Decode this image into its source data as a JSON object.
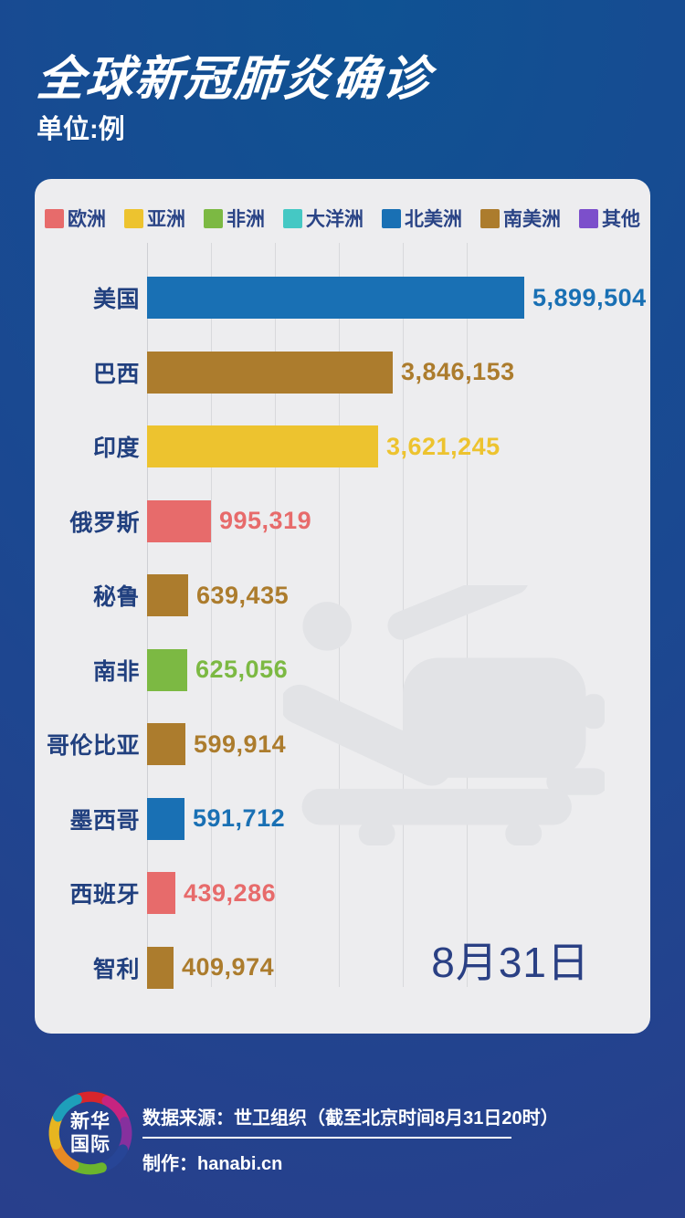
{
  "header": {
    "title": "全球新冠肺炎确诊",
    "unit_label": "单位:例"
  },
  "legend": [
    {
      "label": "欧洲",
      "color": "#E76B6B"
    },
    {
      "label": "亚洲",
      "color": "#EDC32F"
    },
    {
      "label": "非洲",
      "color": "#7CB943"
    },
    {
      "label": "大洋洲",
      "color": "#45C8C4"
    },
    {
      "label": "北美洲",
      "color": "#1970B4"
    },
    {
      "label": "南美洲",
      "color": "#AC7C2D"
    },
    {
      "label": "其他",
      "color": "#7C4FCB"
    }
  ],
  "chart_data": {
    "type": "bar",
    "orientation": "horizontal",
    "title": "全球新冠肺炎确诊",
    "unit": "例",
    "date_label": "8月31日",
    "grid": true,
    "gridline_interval": 1000000,
    "x_axis_gridline_values": [
      0,
      1000000,
      2000000,
      3000000,
      4000000,
      5000000
    ],
    "legend_position": "top",
    "bars": [
      {
        "country": "美国",
        "continent": "北美洲",
        "value": 5899504,
        "formatted": "5,899,504",
        "color": "#1970B4"
      },
      {
        "country": "巴西",
        "continent": "南美洲",
        "value": 3846153,
        "formatted": "3,846,153",
        "color": "#AC7C2D"
      },
      {
        "country": "印度",
        "continent": "亚洲",
        "value": 3621245,
        "formatted": "3,621,245",
        "color": "#EDC32F"
      },
      {
        "country": "俄罗斯",
        "continent": "欧洲",
        "value": 995319,
        "formatted": "995,319",
        "color": "#E76B6B"
      },
      {
        "country": "秘鲁",
        "continent": "南美洲",
        "value": 639435,
        "formatted": "639,435",
        "color": "#AC7C2D"
      },
      {
        "country": "南非",
        "continent": "非洲",
        "value": 625056,
        "formatted": "625,056",
        "color": "#7CB943"
      },
      {
        "country": "哥伦比亚",
        "continent": "南美洲",
        "value": 599914,
        "formatted": "599,914",
        "color": "#AC7C2D"
      },
      {
        "country": "墨西哥",
        "continent": "北美洲",
        "value": 591712,
        "formatted": "591,712",
        "color": "#1970B4"
      },
      {
        "country": "西班牙",
        "continent": "欧洲",
        "value": 439286,
        "formatted": "439,286",
        "color": "#E76B6B"
      },
      {
        "country": "智利",
        "continent": "南美洲",
        "value": 409974,
        "formatted": "409,974",
        "color": "#AC7C2D"
      }
    ]
  },
  "footer": {
    "source_line": "数据来源：世卫组织（截至北京时间8月31日20时）",
    "credit_line": "制作：hanabi.cn",
    "logo_text_line1": "新华",
    "logo_text_line2": "国际"
  },
  "colors": {
    "background_top": "#0F5293",
    "background_bottom": "#2A3E8B",
    "card_background": "#EDEDEF",
    "label_navy": "#21407F",
    "watermark_gray": "#E2E3E6"
  }
}
